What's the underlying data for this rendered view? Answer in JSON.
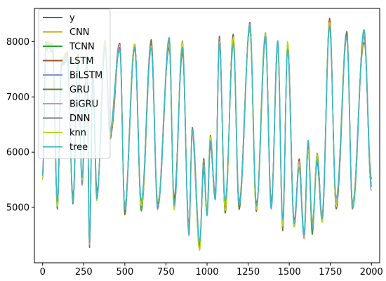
{
  "chart_data": {
    "type": "line",
    "title": "",
    "xlabel": "",
    "ylabel": "",
    "xlim": [
      -50,
      2050
    ],
    "ylim": [
      4000,
      8600
    ],
    "xticks": [
      0,
      250,
      500,
      750,
      1000,
      1250,
      1500,
      1750,
      2000
    ],
    "yticks": [
      5000,
      6000,
      7000,
      8000
    ],
    "grid": false,
    "legend_position": "upper-left",
    "series": [
      {
        "name": "y",
        "color": "#1f77b4"
      },
      {
        "name": "CNN",
        "color": "#c8a800"
      },
      {
        "name": "TCNN",
        "color": "#2ca02c"
      },
      {
        "name": "LSTM",
        "color": "#a0522d"
      },
      {
        "name": "BiLSTM",
        "color": "#8c8cd0"
      },
      {
        "name": "GRU",
        "color": "#6b7a2a"
      },
      {
        "name": "BiGRU",
        "color": "#d48ad8"
      },
      {
        "name": "DNN",
        "color": "#7f7f7f"
      },
      {
        "name": "knn",
        "color": "#bcd818"
      },
      {
        "name": "tree",
        "color": "#3fb8c8"
      }
    ],
    "peaks_approx": [
      {
        "x": 0,
        "y": 5600
      },
      {
        "x": 20,
        "y": 7950
      },
      {
        "x": 60,
        "y": 7900
      },
      {
        "x": 90,
        "y": 5000
      },
      {
        "x": 115,
        "y": 7600
      },
      {
        "x": 150,
        "y": 7800
      },
      {
        "x": 185,
        "y": 5100
      },
      {
        "x": 215,
        "y": 7700
      },
      {
        "x": 240,
        "y": 5500
      },
      {
        "x": 270,
        "y": 7600
      },
      {
        "x": 285,
        "y": 4350
      },
      {
        "x": 305,
        "y": 7400
      },
      {
        "x": 330,
        "y": 5200
      },
      {
        "x": 380,
        "y": 7950
      },
      {
        "x": 410,
        "y": 6300
      },
      {
        "x": 470,
        "y": 7900
      },
      {
        "x": 500,
        "y": 5000
      },
      {
        "x": 560,
        "y": 7950
      },
      {
        "x": 600,
        "y": 5000
      },
      {
        "x": 660,
        "y": 7950
      },
      {
        "x": 700,
        "y": 5050
      },
      {
        "x": 770,
        "y": 7950
      },
      {
        "x": 800,
        "y": 5050
      },
      {
        "x": 850,
        "y": 7900
      },
      {
        "x": 890,
        "y": 4600
      },
      {
        "x": 910,
        "y": 6400
      },
      {
        "x": 955,
        "y": 4300
      },
      {
        "x": 980,
        "y": 5800
      },
      {
        "x": 1000,
        "y": 4900
      },
      {
        "x": 1020,
        "y": 6200
      },
      {
        "x": 1050,
        "y": 5200
      },
      {
        "x": 1075,
        "y": 8000
      },
      {
        "x": 1110,
        "y": 5000
      },
      {
        "x": 1160,
        "y": 8000
      },
      {
        "x": 1195,
        "y": 5050
      },
      {
        "x": 1260,
        "y": 8250
      },
      {
        "x": 1300,
        "y": 5000
      },
      {
        "x": 1355,
        "y": 8100
      },
      {
        "x": 1390,
        "y": 5050
      },
      {
        "x": 1430,
        "y": 7950
      },
      {
        "x": 1460,
        "y": 4700
      },
      {
        "x": 1490,
        "y": 7900
      },
      {
        "x": 1530,
        "y": 4700
      },
      {
        "x": 1560,
        "y": 5800
      },
      {
        "x": 1590,
        "y": 4500
      },
      {
        "x": 1615,
        "y": 6100
      },
      {
        "x": 1640,
        "y": 4600
      },
      {
        "x": 1670,
        "y": 5900
      },
      {
        "x": 1700,
        "y": 4800
      },
      {
        "x": 1745,
        "y": 8350
      },
      {
        "x": 1785,
        "y": 5050
      },
      {
        "x": 1850,
        "y": 8100
      },
      {
        "x": 1885,
        "y": 5050
      },
      {
        "x": 1955,
        "y": 8100
      },
      {
        "x": 2000,
        "y": 5400
      }
    ]
  }
}
